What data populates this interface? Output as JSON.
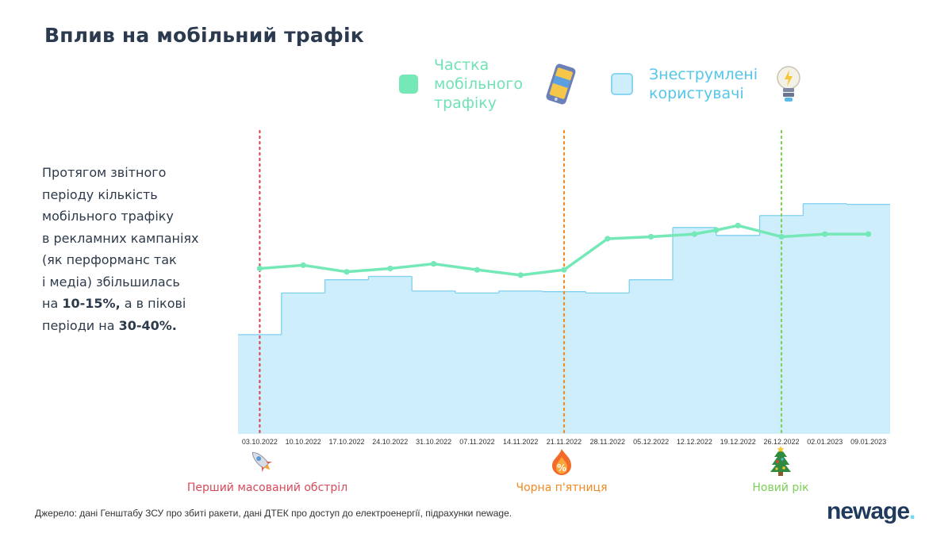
{
  "title": "Вплив на мобільний трафік",
  "legend": {
    "mobile_share": "Частка мобільного трафіку",
    "mobile_share_lines": [
      "Частка",
      "мобільного",
      "трафіку"
    ],
    "affected_users_lines": [
      "Знеструмлені",
      "користувачі"
    ],
    "colors": {
      "mobile_share": "#74e8b6",
      "affected_users": "#cdeefa"
    }
  },
  "description": {
    "lines": [
      "Протягом звітного",
      "періоду кількість",
      "мобільного трафіку",
      "в рекламних кампаніях",
      "(як перформанс так",
      "і медіа) збільшилась"
    ],
    "line7_pre": "на ",
    "line7_bold": "10-15%,",
    "line7_post": " а в пікові",
    "line8_pre": "періоди на ",
    "line8_bold": "30-40%."
  },
  "chart_data": {
    "type": "line",
    "x": [
      "03.10.2022",
      "10.10.2022",
      "17.10.2022",
      "24.10.2022",
      "31.10.2022",
      "07.11.2022",
      "14.11.2022",
      "21.11.2022",
      "28.11.2022",
      "05.12.2022",
      "12.12.2022",
      "19.12.2022",
      "26.12.2022",
      "02.01.2023",
      "09.01.2023"
    ],
    "series": [
      {
        "name": "Частка мобільного трафіку",
        "type": "line",
        "color": "#74e8b6",
        "values": [
          250,
          255,
          245,
          250,
          257,
          248,
          240,
          248,
          295,
          298,
          302,
          315,
          298,
          302,
          302
        ],
        "extra_point": {
          "after_index": 10,
          "value": 308
        }
      },
      {
        "name": "Знеструмлені користувачі",
        "type": "step-area",
        "color": "#cdeefa",
        "values": [
          150,
          213,
          233,
          238,
          216,
          213,
          216,
          215,
          213,
          233,
          312,
          300,
          330,
          348,
          347
        ]
      }
    ],
    "ylim": [
      0,
      500
    ],
    "grid": false,
    "annotations": [
      {
        "x": "03.10.2022",
        "label": "Перший масований обстріл",
        "color": "#d64a5b",
        "icon": "rocket-icon"
      },
      {
        "x": "21.11.2022",
        "label": "Чорна п'ятниця",
        "color": "#f08a24",
        "icon": "percent-fire-icon"
      },
      {
        "x": "26.12.2022",
        "label": "Новий рік",
        "color": "#7ccf57",
        "icon": "christmas-tree-icon"
      }
    ]
  },
  "source": "Джерело: дані Генштабу ЗСУ про збиті ракети, дані ДТЕК про доступ до електроенергії, підрахунки newage.",
  "logo": {
    "main": "newage",
    "dot": "."
  }
}
